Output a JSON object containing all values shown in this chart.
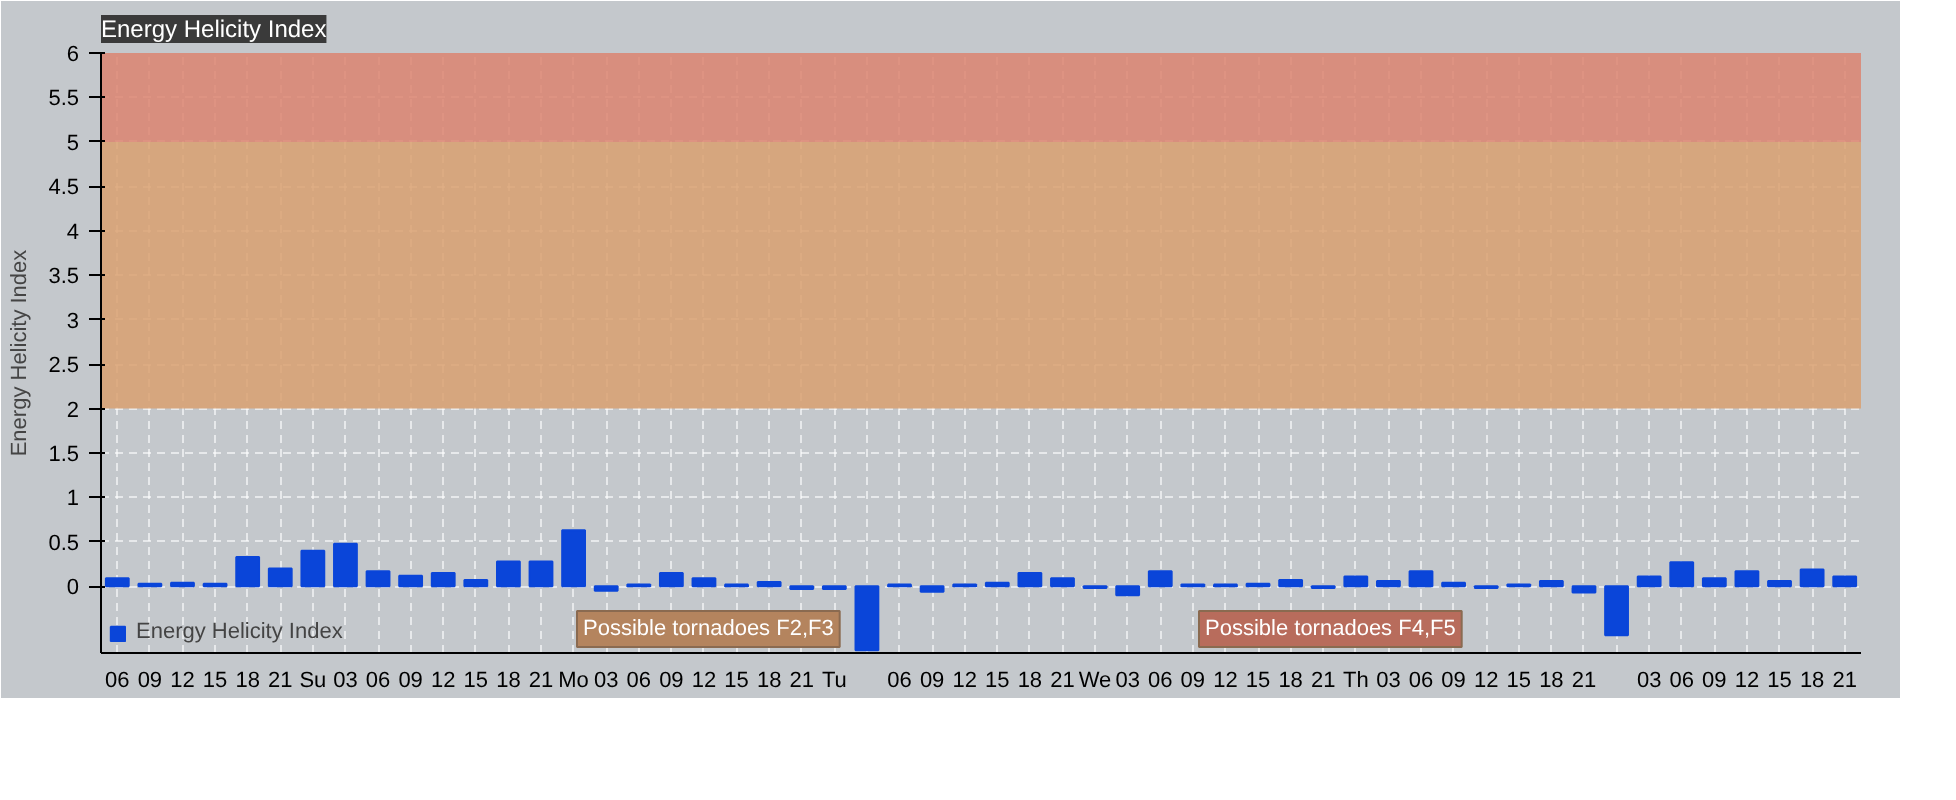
{
  "chart_data": {
    "type": "bar",
    "title": "Energy Helicity Index",
    "ylabel": "Energy Helicity Index",
    "categories": [
      "06",
      "09",
      "12",
      "15",
      "18",
      "21",
      "Su",
      "03",
      "06",
      "09",
      "12",
      "15",
      "18",
      "21",
      "Mo",
      "03",
      "06",
      "09",
      "12",
      "15",
      "18",
      "21",
      "Tu",
      null,
      "06",
      "09",
      "12",
      "15",
      "18",
      "21",
      "We",
      "03",
      "06",
      "09",
      "12",
      "15",
      "18",
      "21",
      "Th",
      "03",
      "06",
      "09",
      "12",
      "15",
      "18",
      "21",
      null,
      "03",
      "06",
      "09",
      "12",
      "15",
      "18",
      "21"
    ],
    "series": [
      {
        "name": "Energy Helicity Index",
        "color": "#0a45d9",
        "values": [
          0.09,
          0.03,
          0.04,
          0.03,
          0.33,
          0.2,
          0.4,
          0.48,
          0.17,
          0.12,
          0.15,
          0.07,
          0.28,
          0.28,
          0.63,
          -0.05,
          0.02,
          0.15,
          0.09,
          0.02,
          0.05,
          -0.03,
          -0.03,
          -0.72,
          0.02,
          -0.06,
          0.02,
          0.04,
          0.15,
          0.09,
          -0.02,
          -0.1,
          0.17,
          0.02,
          0.02,
          0.03,
          0.07,
          -0.02,
          0.11,
          0.06,
          0.17,
          0.04,
          -0.02,
          0.02,
          0.06,
          -0.07,
          -0.55,
          0.11,
          0.27,
          0.09,
          0.17,
          0.06,
          0.19,
          0.11
        ]
      }
    ],
    "ylim": [
      -0.75,
      6
    ],
    "yticks": [
      0,
      0.5,
      1,
      1.5,
      2,
      2.5,
      3,
      3.5,
      4,
      4.5,
      5,
      5.5,
      6
    ],
    "bands": [
      {
        "axis": "y",
        "from": 2,
        "to": 5,
        "color": "#d9a070"
      },
      {
        "axis": "y",
        "from": 5,
        "to": 6,
        "color": "#dc8470"
      }
    ],
    "annotations": [
      "Possible tornadoes F2,F3",
      "Possible tornadoes F4,F5"
    ],
    "grid": true,
    "legend": "bottom left"
  }
}
